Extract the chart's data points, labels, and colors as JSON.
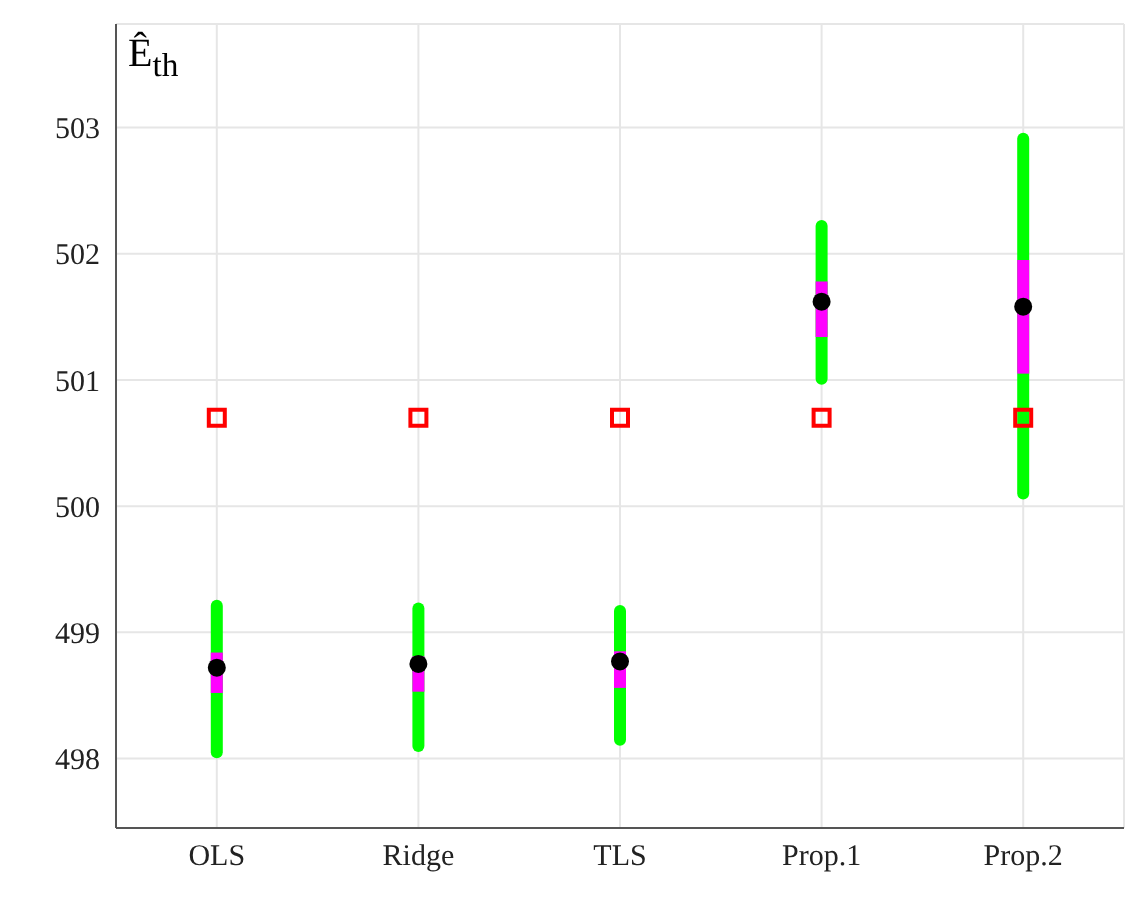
{
  "chart_data": {
    "type": "box",
    "ylabel": "Ê$_{th}$",
    "categories": [
      "OLS",
      "Ridge",
      "TLS",
      "Prop.1",
      "Prop.2"
    ],
    "ylim": [
      497.45,
      503.82
    ],
    "yticks": [
      498,
      499,
      500,
      501,
      502,
      503
    ],
    "grid": true,
    "series": [
      {
        "color": "#ff00ff",
        "boxes": [
          {
            "low": 498.05,
            "q1": 498.52,
            "median": 498.72,
            "q3": 498.84,
            "high": 499.21
          },
          {
            "low": 498.1,
            "q1": 498.53,
            "median": 498.75,
            "q3": 498.81,
            "high": 499.19
          },
          {
            "low": 498.15,
            "q1": 498.56,
            "median": 498.77,
            "q3": 498.85,
            "high": 499.17
          },
          {
            "low": 501.01,
            "q1": 501.34,
            "median": 501.62,
            "q3": 501.78,
            "high": 502.22
          },
          {
            "low": 500.1,
            "q1": 501.05,
            "median": 501.58,
            "q3": 501.95,
            "high": 502.91
          }
        ]
      },
      {
        "type": "scatter",
        "color": "#ff0000",
        "marker": "square",
        "x": [
          "OLS",
          "Ridge",
          "TLS",
          "Prop.1",
          "Prop.2"
        ],
        "values": [
          500.7,
          500.7,
          500.7,
          500.7,
          500.7
        ]
      }
    ]
  }
}
